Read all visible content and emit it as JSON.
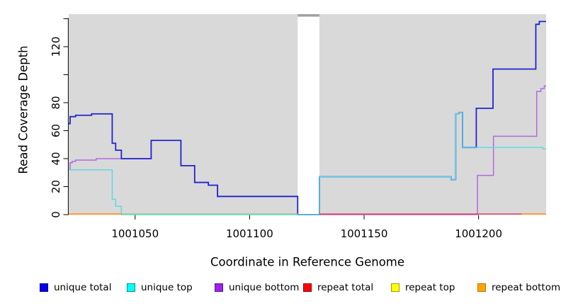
{
  "chart_data": {
    "type": "line",
    "subtype": "step-after-coverage-plot",
    "title": "",
    "xlabel": "Coordinate in Reference Genome",
    "ylabel": "Read Coverage Depth",
    "xlim": [
      1001021,
      1001229.5
    ],
    "ylim": [
      0,
      140
    ],
    "x_ticks": [
      1001050,
      1001100,
      1001150,
      1001200
    ],
    "y_ticks": [
      {
        "value": 0,
        "label": "0"
      },
      {
        "value": 20,
        "label": "20"
      },
      {
        "value": 40,
        "label": "40"
      },
      {
        "value": 60,
        "label": "60"
      },
      {
        "value": 80,
        "label": "80"
      },
      {
        "value": 100,
        "label": ""
      },
      {
        "value": 120,
        "label": "120"
      },
      {
        "value": 140,
        "label": ""
      }
    ],
    "grid": false,
    "plot_bg": "#d9d9d9",
    "page_bg": "#ffffff",
    "gap": {
      "x0": 1001121,
      "x1": 1001130.5,
      "fill": "#ffffff",
      "top_bar_color": "#a2a2a2",
      "meaning": "no-data white band in reference coordinates"
    },
    "series": [
      {
        "name": "unique bottom",
        "color": "#b269e0",
        "width": 1.5,
        "points": [
          [
            1001021,
            32
          ],
          [
            1001021.6,
            37
          ],
          [
            1001022.5,
            38
          ],
          [
            1001024,
            39
          ],
          [
            1001033,
            40
          ],
          [
            1001057,
            53
          ],
          [
            1001070,
            35
          ],
          [
            1001076,
            23
          ],
          [
            1001082,
            21
          ],
          [
            1001086,
            13
          ],
          [
            1001121,
            0
          ],
          [
            1001199.5,
            28
          ],
          [
            1001206.5,
            56
          ],
          [
            1001225.4,
            88
          ],
          [
            1001227.2,
            90
          ],
          [
            1001228.7,
            92
          ],
          [
            1001229.5,
            92
          ]
        ]
      },
      {
        "name": "unique total",
        "color": "#2323cf",
        "width": 1.8,
        "points": [
          [
            1001021,
            65
          ],
          [
            1001021.6,
            70
          ],
          [
            1001024,
            71
          ],
          [
            1001031,
            72
          ],
          [
            1001040,
            51
          ],
          [
            1001041.5,
            46
          ],
          [
            1001044,
            40
          ],
          [
            1001057,
            53
          ],
          [
            1001070,
            35
          ],
          [
            1001076,
            23
          ],
          [
            1001082,
            21
          ],
          [
            1001086,
            13
          ],
          [
            1001121,
            0
          ],
          [
            1001130.5,
            27
          ],
          [
            1001188,
            25
          ],
          [
            1001190,
            72
          ],
          [
            1001191.5,
            73
          ],
          [
            1001193,
            48
          ],
          [
            1001199,
            76
          ],
          [
            1001206.3,
            104
          ],
          [
            1001225,
            136
          ],
          [
            1001226.5,
            138
          ],
          [
            1001229.5,
            138
          ]
        ]
      },
      {
        "name": "unique top",
        "color": "#59d7e6",
        "width": 1.4,
        "points": [
          [
            1001021,
            32
          ],
          [
            1001040,
            11
          ],
          [
            1001041.5,
            6
          ],
          [
            1001044,
            0
          ],
          [
            1001130.5,
            27
          ],
          [
            1001188,
            25
          ],
          [
            1001190,
            72
          ],
          [
            1001191.5,
            73
          ],
          [
            1001193,
            48
          ],
          [
            1001228,
            47
          ],
          [
            1001229.5,
            47
          ]
        ]
      }
    ],
    "baseline_segments": [
      {
        "series": "repeat bottom",
        "depth": 0,
        "color": "#ff8c1a",
        "x0": 1001021,
        "x1": 1001044.3
      },
      {
        "series": "repeat top (over unique top)",
        "depth": 0,
        "color": "#8fce8f",
        "x0": 1001044.3,
        "x1": 1001121
      },
      {
        "series": "repeat total",
        "depth": 0,
        "color": "#dc4663",
        "x0": 1001130.5,
        "x1": 1001218.8
      },
      {
        "series": "repeat bottom",
        "depth": 0,
        "color": "#ff8c1a",
        "x0": 1001218.8,
        "x1": 1001229.5
      }
    ],
    "legend": [
      {
        "label": "unique total",
        "fill": "#0000ee",
        "border": "#00008b"
      },
      {
        "label": "unique top",
        "fill": "#00ffff",
        "border": "#008b8b"
      },
      {
        "label": "unique bottom",
        "fill": "#a020f0",
        "border": "#551a8b"
      },
      {
        "label": "repeat total",
        "fill": "#ff0000",
        "border": "#8b0000"
      },
      {
        "label": "repeat top",
        "fill": "#ffff00",
        "border": "#9b9b00"
      },
      {
        "label": "repeat bottom",
        "fill": "#ffa500",
        "border": "#b87400"
      }
    ],
    "legend_position": "bottom"
  }
}
